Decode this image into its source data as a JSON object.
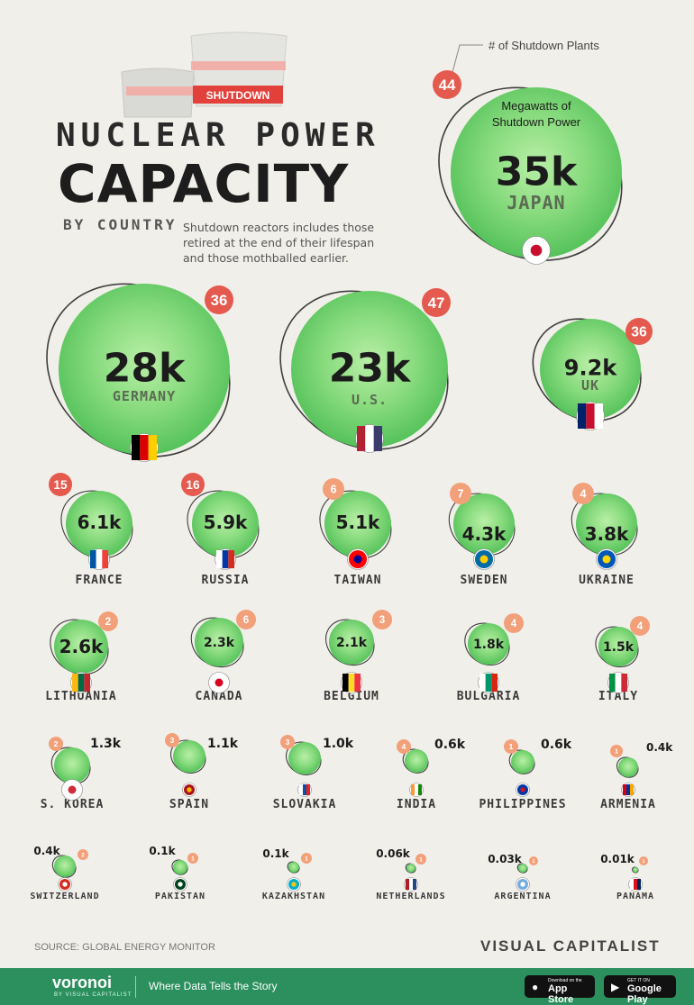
{
  "header": {
    "title_top": "NUCLEAR POWER",
    "title_big": "CAPACITY",
    "by_country": "BY COUNTRY",
    "intro": "Shutdown reactors includes those retired at the end of their lifespan and those mothballed earlier.",
    "banner_label": "SHUTDOWN"
  },
  "legend": {
    "plants_label": "# of Shutdown Plants",
    "power_label": "Megawatts of Shutdown Power"
  },
  "colors": {
    "bubble": "#7fd67a",
    "bubble_dark": "#4cbf52",
    "badge": "#e55a4e",
    "badge_light": "#f2a07a",
    "orbit": "#1f1f1f",
    "footer": "#2c8f5e"
  },
  "chart_data": {
    "type": "bubble",
    "countries": [
      {
        "country": "JAPAN",
        "mw_label": "35k",
        "mw": 35000,
        "plants": 44,
        "flag": "jp"
      },
      {
        "country": "GERMANY",
        "mw_label": "28k",
        "mw": 28000,
        "plants": 36,
        "flag": "de"
      },
      {
        "country": "U.S.",
        "mw_label": "23k",
        "mw": 23000,
        "plants": 47,
        "flag": "us"
      },
      {
        "country": "UK",
        "mw_label": "9.2k",
        "mw": 9200,
        "plants": 36,
        "flag": "uk"
      },
      {
        "country": "FRANCE",
        "mw_label": "6.1k",
        "mw": 6100,
        "plants": 15,
        "flag": "fr"
      },
      {
        "country": "RUSSIA",
        "mw_label": "5.9k",
        "mw": 5900,
        "plants": 16,
        "flag": "ru"
      },
      {
        "country": "TAIWAN",
        "mw_label": "5.1k",
        "mw": 5100,
        "plants": 6,
        "flag": "tw"
      },
      {
        "country": "SWEDEN",
        "mw_label": "4.3k",
        "mw": 4300,
        "plants": 7,
        "flag": "se"
      },
      {
        "country": "UKRAINE",
        "mw_label": "3.8k",
        "mw": 3800,
        "plants": 4,
        "flag": "ua"
      },
      {
        "country": "LITHUANIA",
        "mw_label": "2.6k",
        "mw": 2600,
        "plants": 2,
        "flag": "lt"
      },
      {
        "country": "CANADA",
        "mw_label": "2.3k",
        "mw": 2300,
        "plants": 6,
        "flag": "ca"
      },
      {
        "country": "BELGIUM",
        "mw_label": "2.1k",
        "mw": 2100,
        "plants": 3,
        "flag": "be"
      },
      {
        "country": "BULGARIA",
        "mw_label": "1.8k",
        "mw": 1800,
        "plants": 4,
        "flag": "bg"
      },
      {
        "country": "ITALY",
        "mw_label": "1.5k",
        "mw": 1500,
        "plants": 4,
        "flag": "it"
      },
      {
        "country": "S. KOREA",
        "mw_label": "1.3k",
        "mw": 1300,
        "plants": 2,
        "flag": "kr"
      },
      {
        "country": "SPAIN",
        "mw_label": "1.1k",
        "mw": 1100,
        "plants": 3,
        "flag": "es"
      },
      {
        "country": "SLOVAKIA",
        "mw_label": "1.0k",
        "mw": 1000,
        "plants": 3,
        "flag": "sk"
      },
      {
        "country": "INDIA",
        "mw_label": "0.6k",
        "mw": 600,
        "plants": 4,
        "flag": "in"
      },
      {
        "country": "PHILIPPINES",
        "mw_label": "0.6k",
        "mw": 600,
        "plants": 1,
        "flag": "ph"
      },
      {
        "country": "ARMENIA",
        "mw_label": "0.4k",
        "mw": 400,
        "plants": 1,
        "flag": "am"
      },
      {
        "country": "SWITZERLAND",
        "mw_label": "0.4k",
        "mw": 400,
        "plants": 2,
        "flag": "ch"
      },
      {
        "country": "PAKISTAN",
        "mw_label": "0.1k",
        "mw": 100,
        "plants": 1,
        "flag": "pk"
      },
      {
        "country": "KAZAKHSTAN",
        "mw_label": "0.1k",
        "mw": 100,
        "plants": 1,
        "flag": "kz"
      },
      {
        "country": "NETHERLANDS",
        "mw_label": "0.06k",
        "mw": 60,
        "plants": 1,
        "flag": "nl"
      },
      {
        "country": "ARGENTINA",
        "mw_label": "0.03k",
        "mw": 30,
        "plants": 1,
        "flag": "ar"
      },
      {
        "country": "PANAMA",
        "mw_label": "0.01k",
        "mw": 10,
        "plants": 1,
        "flag": "pa"
      }
    ]
  },
  "footer_info": {
    "source": "SOURCE: GLOBAL ENERGY MONITOR",
    "publisher": "VISUAL CAPITALIST",
    "brand": "voronoi",
    "brand_by": "BY VISUAL CAPITALIST",
    "tagline": "Where Data Tells the Story",
    "appstore_small": "Download on the",
    "appstore_large": "App Store",
    "googleplay_small": "GET IT ON",
    "googleplay_large": "Google Play"
  }
}
